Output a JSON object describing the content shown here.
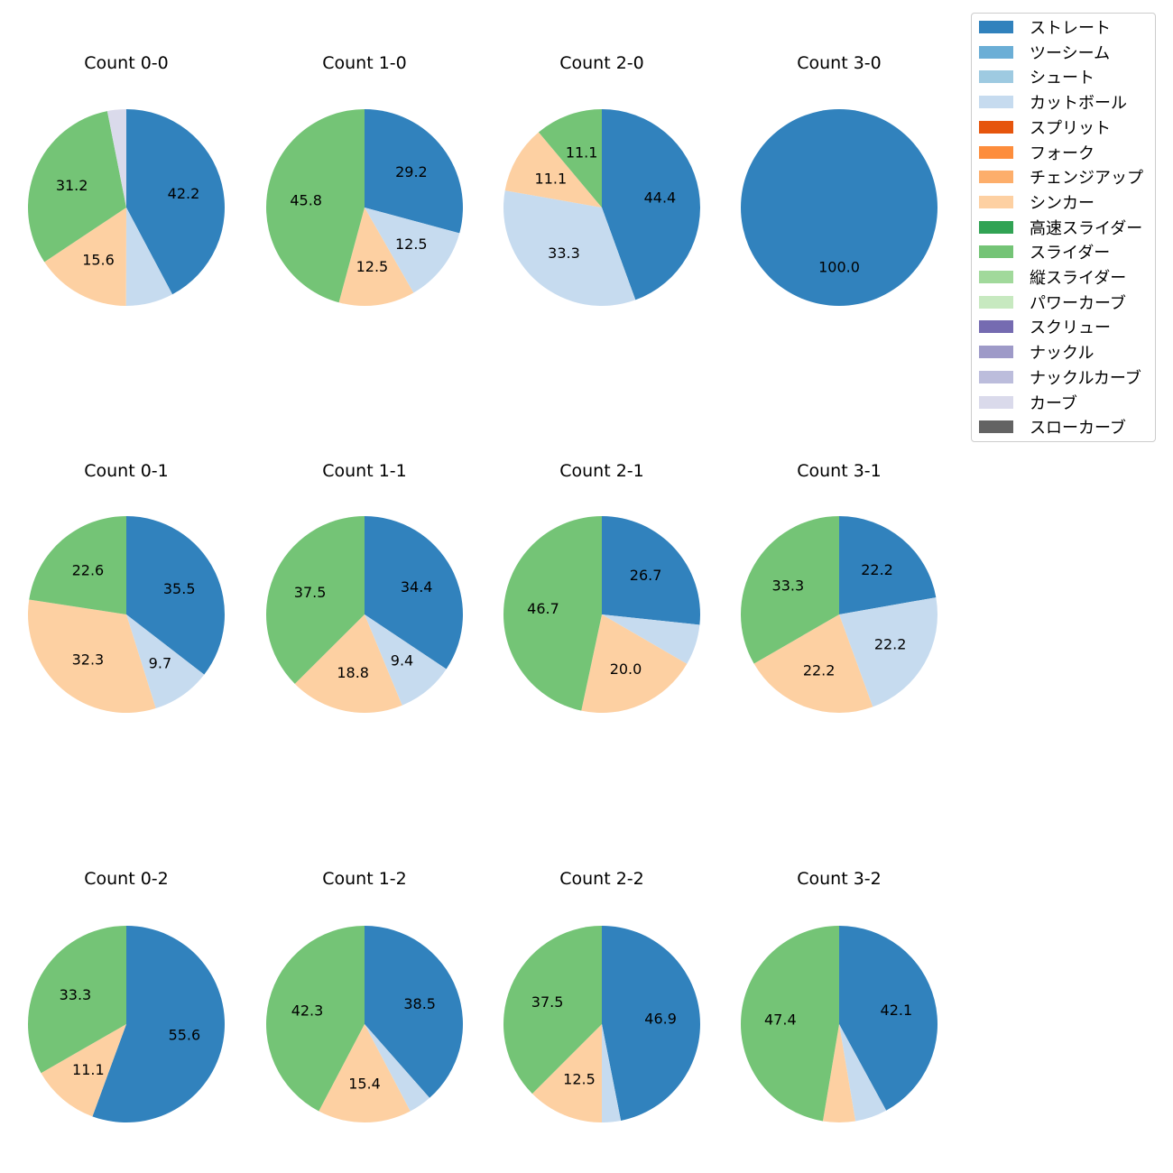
{
  "chart_data": {
    "type": "pie",
    "legend_position": "top-right",
    "legend": [
      {
        "name": "ストレート",
        "color": "#3182bd"
      },
      {
        "name": "ツーシーム",
        "color": "#6baed6"
      },
      {
        "name": "シュート",
        "color": "#9ecae1"
      },
      {
        "name": "カットボール",
        "color": "#c6dbef"
      },
      {
        "name": "スプリット",
        "color": "#e6550d"
      },
      {
        "name": "フォーク",
        "color": "#fd8d3c"
      },
      {
        "name": "チェンジアップ",
        "color": "#fdae6b"
      },
      {
        "name": "シンカー",
        "color": "#fdd0a2"
      },
      {
        "name": "高速スライダー",
        "color": "#31a354"
      },
      {
        "name": "スライダー",
        "color": "#74c476"
      },
      {
        "name": "縦スライダー",
        "color": "#a1d99b"
      },
      {
        "name": "パワーカーブ",
        "color": "#c7e9c0"
      },
      {
        "name": "スクリュー",
        "color": "#756bb1"
      },
      {
        "name": "ナックル",
        "color": "#9e9ac8"
      },
      {
        "name": "ナックルカーブ",
        "color": "#bcbddc"
      },
      {
        "name": "カーブ",
        "color": "#dadaeb"
      },
      {
        "name": "スローカーブ",
        "color": "#636363"
      }
    ],
    "pies": [
      {
        "title": "Count 0-0",
        "slices": [
          {
            "pitch": "ストレート",
            "value": 42.2,
            "label": "42.2"
          },
          {
            "pitch": "カットボール",
            "value": 7.8,
            "label": ""
          },
          {
            "pitch": "シンカー",
            "value": 15.6,
            "label": "15.6"
          },
          {
            "pitch": "スライダー",
            "value": 31.2,
            "label": "31.2"
          },
          {
            "pitch": "カーブ",
            "value": 3.1,
            "label": ""
          }
        ]
      },
      {
        "title": "Count 1-0",
        "slices": [
          {
            "pitch": "ストレート",
            "value": 29.2,
            "label": "29.2"
          },
          {
            "pitch": "カットボール",
            "value": 12.5,
            "label": "12.5"
          },
          {
            "pitch": "シンカー",
            "value": 12.5,
            "label": "12.5"
          },
          {
            "pitch": "スライダー",
            "value": 45.8,
            "label": "45.8"
          }
        ]
      },
      {
        "title": "Count 2-0",
        "slices": [
          {
            "pitch": "ストレート",
            "value": 44.4,
            "label": "44.4"
          },
          {
            "pitch": "カットボール",
            "value": 33.3,
            "label": "33.3"
          },
          {
            "pitch": "シンカー",
            "value": 11.1,
            "label": "11.1"
          },
          {
            "pitch": "スライダー",
            "value": 11.1,
            "label": "11.1"
          }
        ]
      },
      {
        "title": "Count 3-0",
        "slices": [
          {
            "pitch": "ストレート",
            "value": 100.0,
            "label": "100.0"
          }
        ]
      },
      {
        "title": "Count 0-1",
        "slices": [
          {
            "pitch": "ストレート",
            "value": 35.5,
            "label": "35.5"
          },
          {
            "pitch": "カットボール",
            "value": 9.7,
            "label": "9.7"
          },
          {
            "pitch": "シンカー",
            "value": 32.3,
            "label": "32.3"
          },
          {
            "pitch": "スライダー",
            "value": 22.6,
            "label": "22.6"
          }
        ]
      },
      {
        "title": "Count 1-1",
        "slices": [
          {
            "pitch": "ストレート",
            "value": 34.4,
            "label": "34.4"
          },
          {
            "pitch": "カットボール",
            "value": 9.4,
            "label": "9.4"
          },
          {
            "pitch": "シンカー",
            "value": 18.8,
            "label": "18.8"
          },
          {
            "pitch": "スライダー",
            "value": 37.5,
            "label": "37.5"
          }
        ]
      },
      {
        "title": "Count 2-1",
        "slices": [
          {
            "pitch": "ストレート",
            "value": 26.7,
            "label": "26.7"
          },
          {
            "pitch": "カットボール",
            "value": 6.7,
            "label": ""
          },
          {
            "pitch": "シンカー",
            "value": 20.0,
            "label": "20.0"
          },
          {
            "pitch": "スライダー",
            "value": 46.7,
            "label": "46.7"
          }
        ]
      },
      {
        "title": "Count 3-1",
        "slices": [
          {
            "pitch": "ストレート",
            "value": 22.2,
            "label": "22.2"
          },
          {
            "pitch": "カットボール",
            "value": 22.2,
            "label": "22.2"
          },
          {
            "pitch": "シンカー",
            "value": 22.2,
            "label": "22.2"
          },
          {
            "pitch": "スライダー",
            "value": 33.3,
            "label": "33.3"
          }
        ]
      },
      {
        "title": "Count 0-2",
        "slices": [
          {
            "pitch": "ストレート",
            "value": 55.6,
            "label": "55.6"
          },
          {
            "pitch": "シンカー",
            "value": 11.1,
            "label": "11.1"
          },
          {
            "pitch": "スライダー",
            "value": 33.3,
            "label": "33.3"
          }
        ]
      },
      {
        "title": "Count 1-2",
        "slices": [
          {
            "pitch": "ストレート",
            "value": 38.5,
            "label": "38.5"
          },
          {
            "pitch": "カットボール",
            "value": 3.8,
            "label": ""
          },
          {
            "pitch": "シンカー",
            "value": 15.4,
            "label": "15.4"
          },
          {
            "pitch": "スライダー",
            "value": 42.3,
            "label": "42.3"
          }
        ]
      },
      {
        "title": "Count 2-2",
        "slices": [
          {
            "pitch": "ストレート",
            "value": 46.9,
            "label": "46.9"
          },
          {
            "pitch": "カットボール",
            "value": 3.1,
            "label": ""
          },
          {
            "pitch": "シンカー",
            "value": 12.5,
            "label": "12.5"
          },
          {
            "pitch": "スライダー",
            "value": 37.5,
            "label": "37.5"
          }
        ]
      },
      {
        "title": "Count 3-2",
        "slices": [
          {
            "pitch": "ストレート",
            "value": 42.1,
            "label": "42.1"
          },
          {
            "pitch": "カットボール",
            "value": 5.3,
            "label": ""
          },
          {
            "pitch": "シンカー",
            "value": 5.3,
            "label": ""
          },
          {
            "pitch": "スライダー",
            "value": 47.4,
            "label": "47.4"
          }
        ]
      }
    ]
  }
}
